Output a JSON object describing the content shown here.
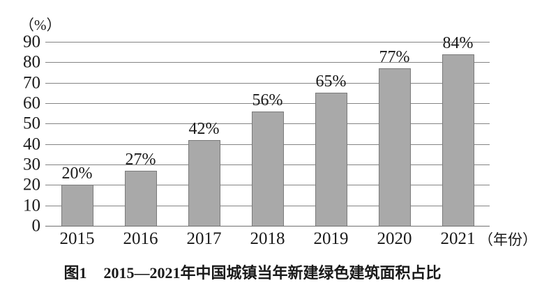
{
  "figure": {
    "caption_label": "图1",
    "caption_text": "2015—2021年中国城镇当年新建绿色建筑面积占比"
  },
  "chart_data": {
    "type": "bar",
    "title": "图1 2015—2021年中国城镇当年新建绿色建筑面积占比",
    "categories": [
      "2015",
      "2016",
      "2017",
      "2018",
      "2019",
      "2020",
      "2021"
    ],
    "values": [
      20,
      27,
      42,
      56,
      65,
      77,
      84
    ],
    "value_labels": [
      "20%",
      "27%",
      "42%",
      "56%",
      "65%",
      "77%",
      "84%"
    ],
    "ylabel": "（%）",
    "xlabel": "（年份）",
    "ylim": [
      0,
      90
    ],
    "ytick_step": 10,
    "yticks": [
      "0",
      "10",
      "20",
      "30",
      "40",
      "50",
      "60",
      "70",
      "80",
      "90"
    ],
    "grid": true,
    "legend": "none",
    "colors": {
      "bar_fill": "#a9a9a9",
      "bar_border": "#7a7a7a",
      "gridline": "#848484",
      "axis_line": "#6f6f6f",
      "text": "#1a1a1a"
    }
  }
}
